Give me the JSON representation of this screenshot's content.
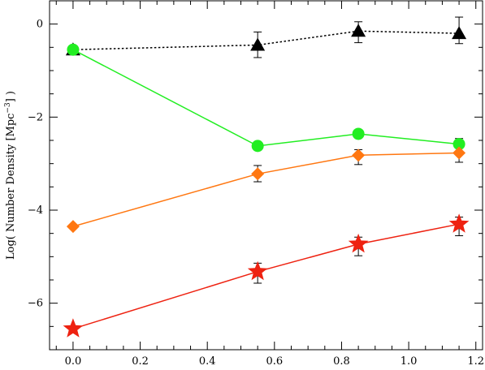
{
  "chart_data": {
    "type": "line",
    "title": "",
    "xlabel": "",
    "ylabel_parts": [
      "Log( Number Density [Mpc",
      "−3",
      "] )"
    ],
    "xlim": [
      -0.07,
      1.22
    ],
    "ylim": [
      -7.0,
      0.5
    ],
    "xticks": [
      0.0,
      0.2,
      0.4,
      0.6,
      0.8,
      1.0,
      1.2
    ],
    "xtick_labels": [
      "0.0",
      "0.2",
      "0.4",
      "0.6",
      "0.8",
      "1.0",
      "1.2"
    ],
    "yticks": [
      0,
      -2,
      -4,
      -6
    ],
    "ytick_labels": [
      "0",
      "−2",
      "−4",
      "−6"
    ],
    "grid": false,
    "series": [
      {
        "color": "#000000",
        "marker": "triangle",
        "line_style": "dotted",
        "x": [
          0.0,
          0.55,
          0.85,
          1.15
        ],
        "y": [
          -0.55,
          -0.45,
          -0.15,
          -0.2
        ],
        "err_low": [
          0.0,
          0.27,
          0.25,
          0.22
        ],
        "err_high": [
          0.0,
          0.28,
          0.2,
          0.35
        ]
      },
      {
        "color": "#22ee22",
        "marker": "circle",
        "line_style": "solid",
        "x": [
          0.0,
          0.55,
          0.85,
          1.15
        ],
        "y": [
          -0.55,
          -2.62,
          -2.36,
          -2.58
        ],
        "err_low": [
          0.0,
          0.0,
          0.0,
          0.0
        ],
        "err_high": [
          0.0,
          0.0,
          0.0,
          0.12
        ]
      },
      {
        "color": "#ff7711",
        "marker": "diamond",
        "line_style": "solid",
        "x": [
          0.0,
          0.55,
          0.85,
          1.15
        ],
        "y": [
          -4.35,
          -3.22,
          -2.82,
          -2.77
        ],
        "err_low": [
          0.0,
          0.17,
          0.2,
          0.2
        ],
        "err_high": [
          0.0,
          0.18,
          0.12,
          0.0
        ]
      },
      {
        "color": "#ee2211",
        "marker": "star",
        "line_style": "solid",
        "x": [
          0.0,
          0.55,
          0.85,
          1.15
        ],
        "y": [
          -6.55,
          -5.32,
          -4.73,
          -4.3
        ],
        "err_low": [
          0.0,
          0.25,
          0.25,
          0.25
        ],
        "err_high": [
          0.0,
          0.18,
          0.15,
          0.15
        ]
      }
    ]
  }
}
